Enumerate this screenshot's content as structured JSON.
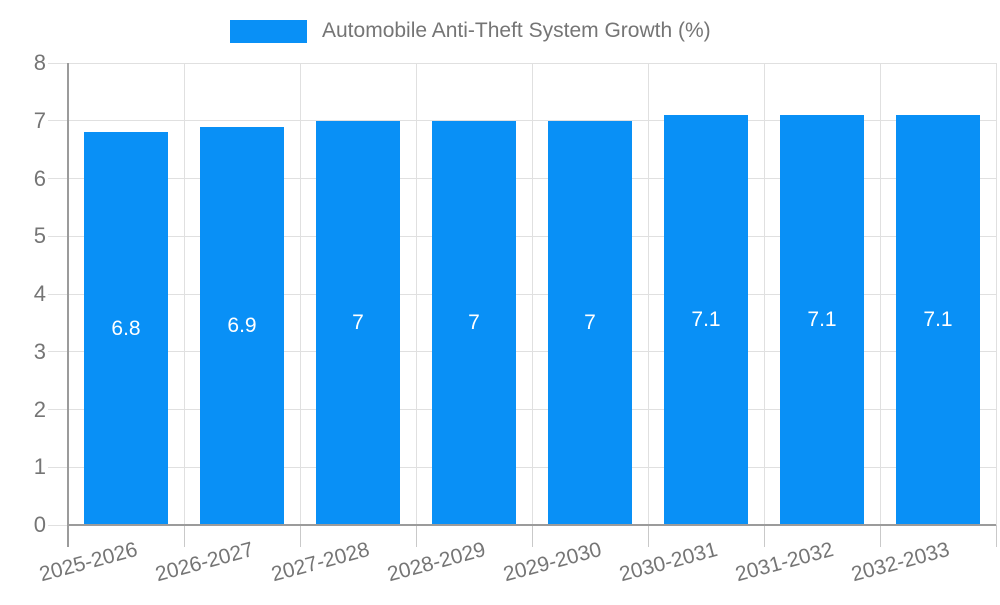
{
  "legend": {
    "label": "Automobile Anti-Theft System Growth (%)"
  },
  "colors": {
    "bar": "#0990f6",
    "grid": "#e0e0e0",
    "tick": "#c9c9c9",
    "axis": "#9b9b9b",
    "label": "#757575",
    "value_label": "#ffffff",
    "background": "#ffffff"
  },
  "chart_data": {
    "type": "bar",
    "title": "Automobile Anti-Theft System Growth (%)",
    "series_name": "Automobile Anti-Theft System Growth (%)",
    "categories": [
      "2025-2026",
      "2026-2027",
      "2027-2028",
      "2028-2029",
      "2029-2030",
      "2030-2031",
      "2031-2032",
      "2032-2033"
    ],
    "values": [
      6.8,
      6.9,
      7,
      7,
      7,
      7.1,
      7.1,
      7.1
    ],
    "xlabel": "",
    "ylabel": "",
    "ylim": [
      0,
      8
    ],
    "yticks": [
      0,
      1,
      2,
      3,
      4,
      5,
      6,
      7,
      8
    ],
    "grid": true,
    "legend_position": "top",
    "value_labels": "inside-center",
    "x_label_rotation_deg": -15
  }
}
